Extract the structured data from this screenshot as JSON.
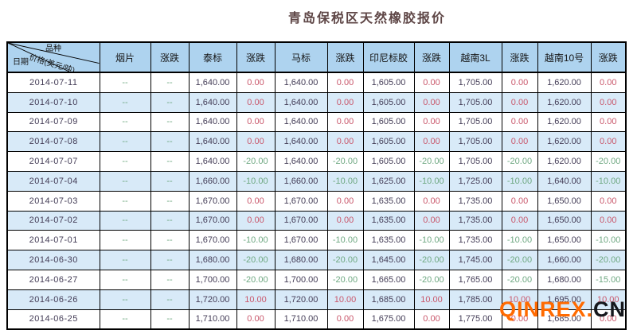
{
  "title": "青岛保税区天然橡胶报价",
  "watermark": {
    "brand": "QINREX",
    "dot": ".",
    "tld": "CN"
  },
  "colors": {
    "up": "#c9576b",
    "down": "#6fa882",
    "num_color": "#433c56",
    "header_bg": "#aed3ef",
    "row_alt_bg": "#d8eaf8",
    "title_color": "#5e4646",
    "watermark_orange": "#ff6a00"
  },
  "table": {
    "corner": {
      "variety": "品种",
      "price_unit": "价格(美元/吨)",
      "date": "日期"
    },
    "columns": [
      "烟片",
      "涨跌",
      "泰标",
      "涨跌",
      "马标",
      "涨跌",
      "印尼标胶",
      "涨跌",
      "越南3L",
      "涨跌",
      "越南10号",
      "涨跌"
    ],
    "rows": [
      {
        "date": "2014-07-11",
        "cells": [
          "--",
          "--",
          "1,640.00",
          "0.00",
          "1,640.00",
          "0.00",
          "1,605.00",
          "0.00",
          "1,705.00",
          "0.00",
          "1,620.00",
          "0.00"
        ]
      },
      {
        "date": "2014-07-10",
        "cells": [
          "--",
          "--",
          "1,640.00",
          "0.00",
          "1,640.00",
          "0.00",
          "1,605.00",
          "0.00",
          "1,705.00",
          "0.00",
          "1,620.00",
          "0.00"
        ]
      },
      {
        "date": "2014-07-09",
        "cells": [
          "--",
          "--",
          "1,640.00",
          "0.00",
          "1,640.00",
          "0.00",
          "1,605.00",
          "0.00",
          "1,705.00",
          "0.00",
          "1,620.00",
          "0.00"
        ]
      },
      {
        "date": "2014-07-08",
        "cells": [
          "--",
          "--",
          "1,640.00",
          "0.00",
          "1,640.00",
          "0.00",
          "1,605.00",
          "0.00",
          "1,705.00",
          "0.00",
          "1,620.00",
          "0.00"
        ]
      },
      {
        "date": "2014-07-07",
        "cells": [
          "--",
          "--",
          "1,640.00",
          "-20.00",
          "1,640.00",
          "-20.00",
          "1,605.00",
          "-20.00",
          "1,705.00",
          "-20.00",
          "1,620.00",
          "-20.00"
        ]
      },
      {
        "date": "2014-07-04",
        "cells": [
          "--",
          "--",
          "1,660.00",
          "-10.00",
          "1,660.00",
          "-10.00",
          "1,625.00",
          "-10.00",
          "1,725.00",
          "-10.00",
          "1,640.00",
          "-10.00"
        ]
      },
      {
        "date": "2014-07-03",
        "cells": [
          "--",
          "--",
          "1,670.00",
          "0.00",
          "1,670.00",
          "0.00",
          "1,635.00",
          "0.00",
          "1,735.00",
          "0.00",
          "1,650.00",
          "0.00"
        ]
      },
      {
        "date": "2014-07-02",
        "cells": [
          "--",
          "--",
          "1,670.00",
          "0.00",
          "1,670.00",
          "0.00",
          "1,635.00",
          "0.00",
          "1,735.00",
          "0.00",
          "1,650.00",
          "0.00"
        ]
      },
      {
        "date": "2014-07-01",
        "cells": [
          "--",
          "--",
          "1,670.00",
          "-10.00",
          "1,670.00",
          "-10.00",
          "1,635.00",
          "-10.00",
          "1,735.00",
          "-10.00",
          "1,650.00",
          "-10.00"
        ]
      },
      {
        "date": "2014-06-30",
        "cells": [
          "--",
          "--",
          "1,680.00",
          "-20.00",
          "1,680.00",
          "-20.00",
          "1,645.00",
          "-20.00",
          "1,745.00",
          "-20.00",
          "1,660.00",
          "-20.00"
        ]
      },
      {
        "date": "2014-06-27",
        "cells": [
          "--",
          "--",
          "1,700.00",
          "-20.00",
          "1,700.00",
          "-20.00",
          "1,665.00",
          "-20.00",
          "1,765.00",
          "-20.00",
          "1,680.00",
          "-15.00"
        ]
      },
      {
        "date": "2014-06-26",
        "cells": [
          "--",
          "--",
          "1,720.00",
          "10.00",
          "1,720.00",
          "10.00",
          "1,685.00",
          "10.00",
          "1,785.00",
          "10.00",
          "1,695.00",
          "10.00"
        ]
      },
      {
        "date": "2014-06-25",
        "cells": [
          "--",
          "--",
          "1,710.00",
          "0.00",
          "1,710.00",
          "0.00",
          "1,675.00",
          "0.00",
          "1,775.00",
          "0.00",
          "1,685.00",
          "0.00"
        ]
      }
    ]
  }
}
